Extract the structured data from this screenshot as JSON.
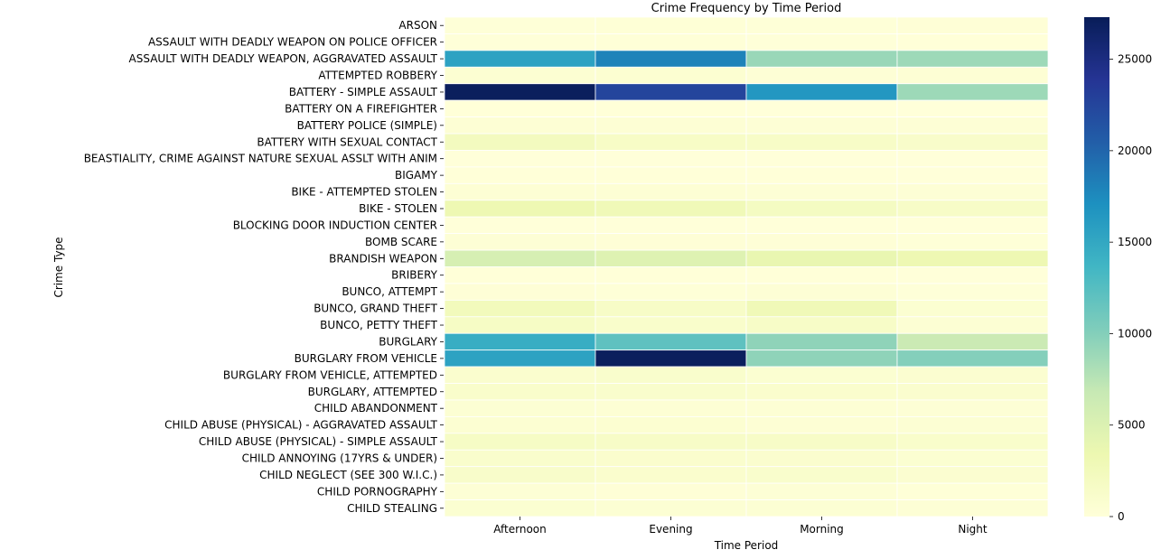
{
  "chart_data": {
    "type": "heatmap",
    "title": "Crime Frequency by Time Period",
    "xlabel": "Time Period",
    "ylabel": "Crime Type",
    "columns": [
      "Afternoon",
      "Evening",
      "Morning",
      "Night"
    ],
    "rows": [
      "ARSON",
      "ASSAULT WITH DEADLY WEAPON ON POLICE OFFICER",
      "ASSAULT WITH DEADLY WEAPON, AGGRAVATED ASSAULT",
      "ATTEMPTED ROBBERY",
      "BATTERY - SIMPLE ASSAULT",
      "BATTERY ON A FIREFIGHTER",
      "BATTERY POLICE (SIMPLE)",
      "BATTERY WITH SEXUAL CONTACT",
      "BEASTIALITY, CRIME AGAINST NATURE SEXUAL ASSLT WITH ANIM",
      "BIGAMY",
      "BIKE - ATTEMPTED STOLEN",
      "BIKE - STOLEN",
      "BLOCKING DOOR INDUCTION CENTER",
      "BOMB SCARE",
      "BRANDISH WEAPON",
      "BRIBERY",
      "BUNCO, ATTEMPT",
      "BUNCO, GRAND THEFT",
      "BUNCO, PETTY THEFT",
      "BURGLARY",
      "BURGLARY FROM VEHICLE",
      "BURGLARY FROM VEHICLE, ATTEMPTED",
      "BURGLARY, ATTEMPTED",
      "CHILD ABANDONMENT",
      "CHILD ABUSE (PHYSICAL) - AGGRAVATED ASSAULT",
      "CHILD ABUSE (PHYSICAL) - SIMPLE ASSAULT",
      "CHILD ANNOYING (17YRS & UNDER)",
      "CHILD NEGLECT (SEE 300 W.I.C.)",
      "CHILD PORNOGRAPHY",
      "CHILD STEALING"
    ],
    "values": [
      [
        200,
        220,
        150,
        250
      ],
      [
        120,
        130,
        100,
        90
      ],
      [
        15500,
        18000,
        9000,
        8800
      ],
      [
        600,
        650,
        350,
        450
      ],
      [
        27000,
        22500,
        16500,
        8800
      ],
      [
        50,
        60,
        40,
        30
      ],
      [
        400,
        450,
        300,
        350
      ],
      [
        2200,
        1600,
        1500,
        1300
      ],
      [
        5,
        5,
        5,
        5
      ],
      [
        80,
        70,
        90,
        40
      ],
      [
        400,
        450,
        300,
        380
      ],
      [
        3200,
        2800,
        2000,
        1500
      ],
      [
        5,
        5,
        5,
        5
      ],
      [
        300,
        280,
        250,
        180
      ],
      [
        5500,
        4800,
        3800,
        3200
      ],
      [
        80,
        70,
        80,
        40
      ],
      [
        250,
        180,
        300,
        100
      ],
      [
        2500,
        1500,
        2800,
        700
      ],
      [
        1700,
        1200,
        1500,
        500
      ],
      [
        14500,
        12000,
        9500,
        6500
      ],
      [
        15500,
        27000,
        9500,
        10000
      ],
      [
        900,
        1100,
        700,
        800
      ],
      [
        1200,
        1100,
        1000,
        900
      ],
      [
        500,
        450,
        400,
        350
      ],
      [
        600,
        650,
        450,
        550
      ],
      [
        1700,
        1500,
        1500,
        1200
      ],
      [
        1100,
        1000,
        900,
        700
      ],
      [
        1300,
        1000,
        1100,
        800
      ],
      [
        300,
        250,
        350,
        200
      ],
      [
        700,
        500,
        500,
        300
      ]
    ],
    "vmin": 0,
    "vmax": 27300,
    "colormap": "YlGnBu",
    "colorbar": {
      "ticks": [
        0,
        5000,
        10000,
        15000,
        20000,
        25000
      ]
    },
    "grid": false,
    "legend": "colorbar-right"
  }
}
